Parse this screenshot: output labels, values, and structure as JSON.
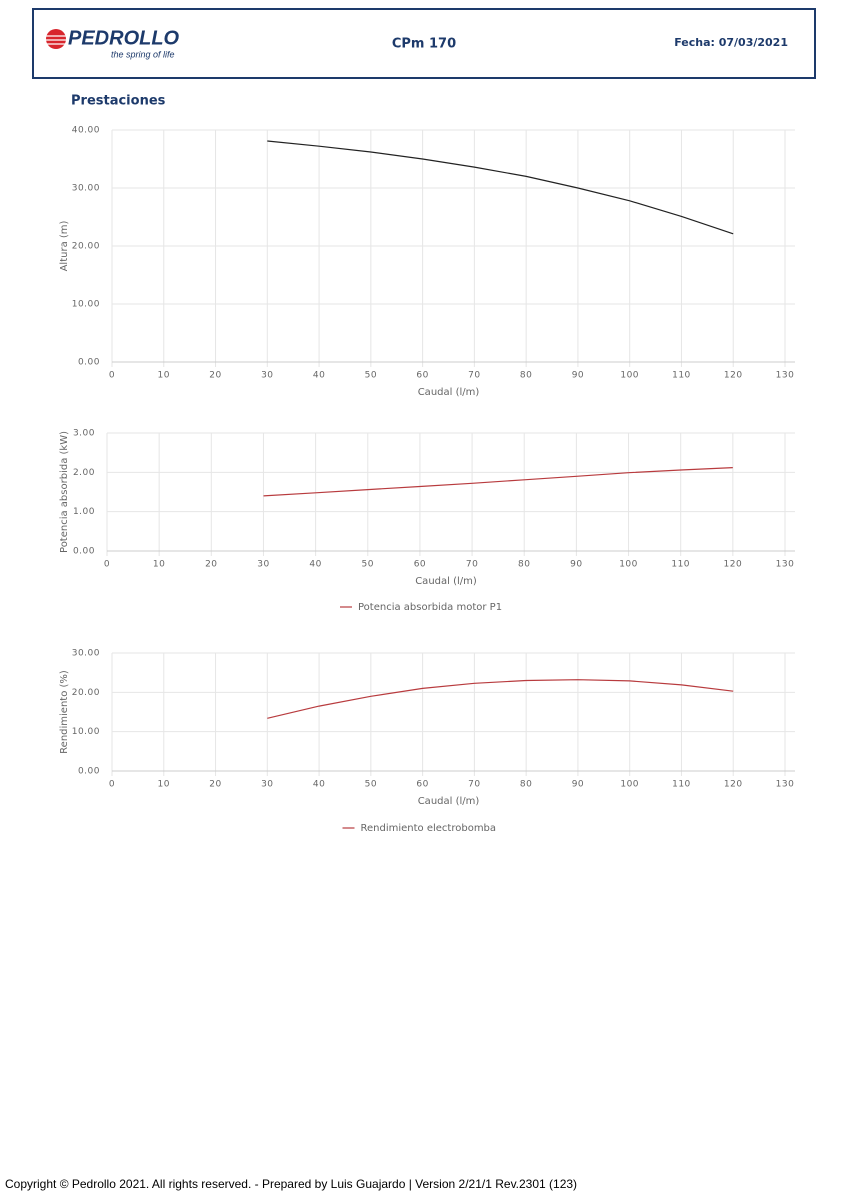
{
  "header": {
    "logo": "PEDROLLO",
    "tagline": "the spring of life",
    "model": "CPm 170",
    "date": "Fecha: 07/03/2021"
  },
  "section_title": "Prestaciones",
  "chart_data": [
    {
      "type": "line",
      "ylabel": "Altura (m)",
      "xlabel": "Caudal (l/m)",
      "color": "#222222",
      "x": [
        30,
        40,
        50,
        60,
        70,
        80,
        90,
        100,
        110,
        120
      ],
      "values": [
        38.1,
        37.2,
        36.2,
        35.0,
        33.6,
        32.0,
        30.0,
        27.8,
        25.1,
        22.1
      ],
      "xlim": [
        0,
        130
      ],
      "xticks": [
        0,
        10,
        20,
        30,
        40,
        50,
        60,
        70,
        80,
        90,
        100,
        110,
        120,
        130
      ],
      "ylim": [
        0,
        40
      ],
      "yticks": [
        {
          "value": 0,
          "label": "0.00"
        },
        {
          "value": 10,
          "label": "10.00"
        },
        {
          "value": 20,
          "label": "20.00"
        },
        {
          "value": 30,
          "label": "30.00"
        },
        {
          "value": 40,
          "label": "40.00"
        }
      ],
      "grid": true
    },
    {
      "type": "line",
      "ylabel": "Potencia absorbida (kW)",
      "xlabel": "Caudal (l/m)",
      "x": [
        30,
        40,
        50,
        60,
        70,
        80,
        90,
        100,
        110,
        120
      ],
      "series": [
        {
          "name": "Potencia absorbida motor P1",
          "color": "#b83b3e",
          "values": [
            1.4,
            1.48,
            1.56,
            1.64,
            1.72,
            1.81,
            1.9,
            1.99,
            2.06,
            2.12
          ]
        }
      ],
      "xlim": [
        0,
        130
      ],
      "xticks": [
        0,
        10,
        20,
        30,
        40,
        50,
        60,
        70,
        80,
        90,
        100,
        110,
        120,
        130
      ],
      "ylim": [
        0,
        3
      ],
      "yticks": [
        {
          "value": 0,
          "label": "0.00"
        },
        {
          "value": 1,
          "label": "1.00"
        },
        {
          "value": 2,
          "label": "2.00"
        },
        {
          "value": 3,
          "label": "3.00"
        }
      ],
      "grid": true,
      "legend": "bottom"
    },
    {
      "type": "line",
      "ylabel": "Rendimiento (%)",
      "xlabel": "Caudal (l/m)",
      "x": [
        30,
        40,
        50,
        60,
        70,
        80,
        90,
        100,
        110,
        120
      ],
      "series": [
        {
          "name": "Rendimiento electrobomba",
          "color": "#b83b3e",
          "values": [
            13.4,
            16.5,
            19.0,
            21.0,
            22.3,
            23.0,
            23.2,
            22.9,
            21.9,
            20.3
          ]
        }
      ],
      "xlim": [
        0,
        130
      ],
      "xticks": [
        0,
        10,
        20,
        30,
        40,
        50,
        60,
        70,
        80,
        90,
        100,
        110,
        120,
        130
      ],
      "ylim": [
        0,
        30
      ],
      "yticks": [
        {
          "value": 0,
          "label": "0.00"
        },
        {
          "value": 10,
          "label": "10.00"
        },
        {
          "value": 20,
          "label": "20.00"
        },
        {
          "value": 30,
          "label": "30.00"
        }
      ],
      "grid": true,
      "legend": "bottom"
    }
  ],
  "footer": "Copyright © Pedrollo 2021. All rights reserved. - Prepared by Luis Guajardo | Version 2/21/1 Rev.2301 (123)"
}
